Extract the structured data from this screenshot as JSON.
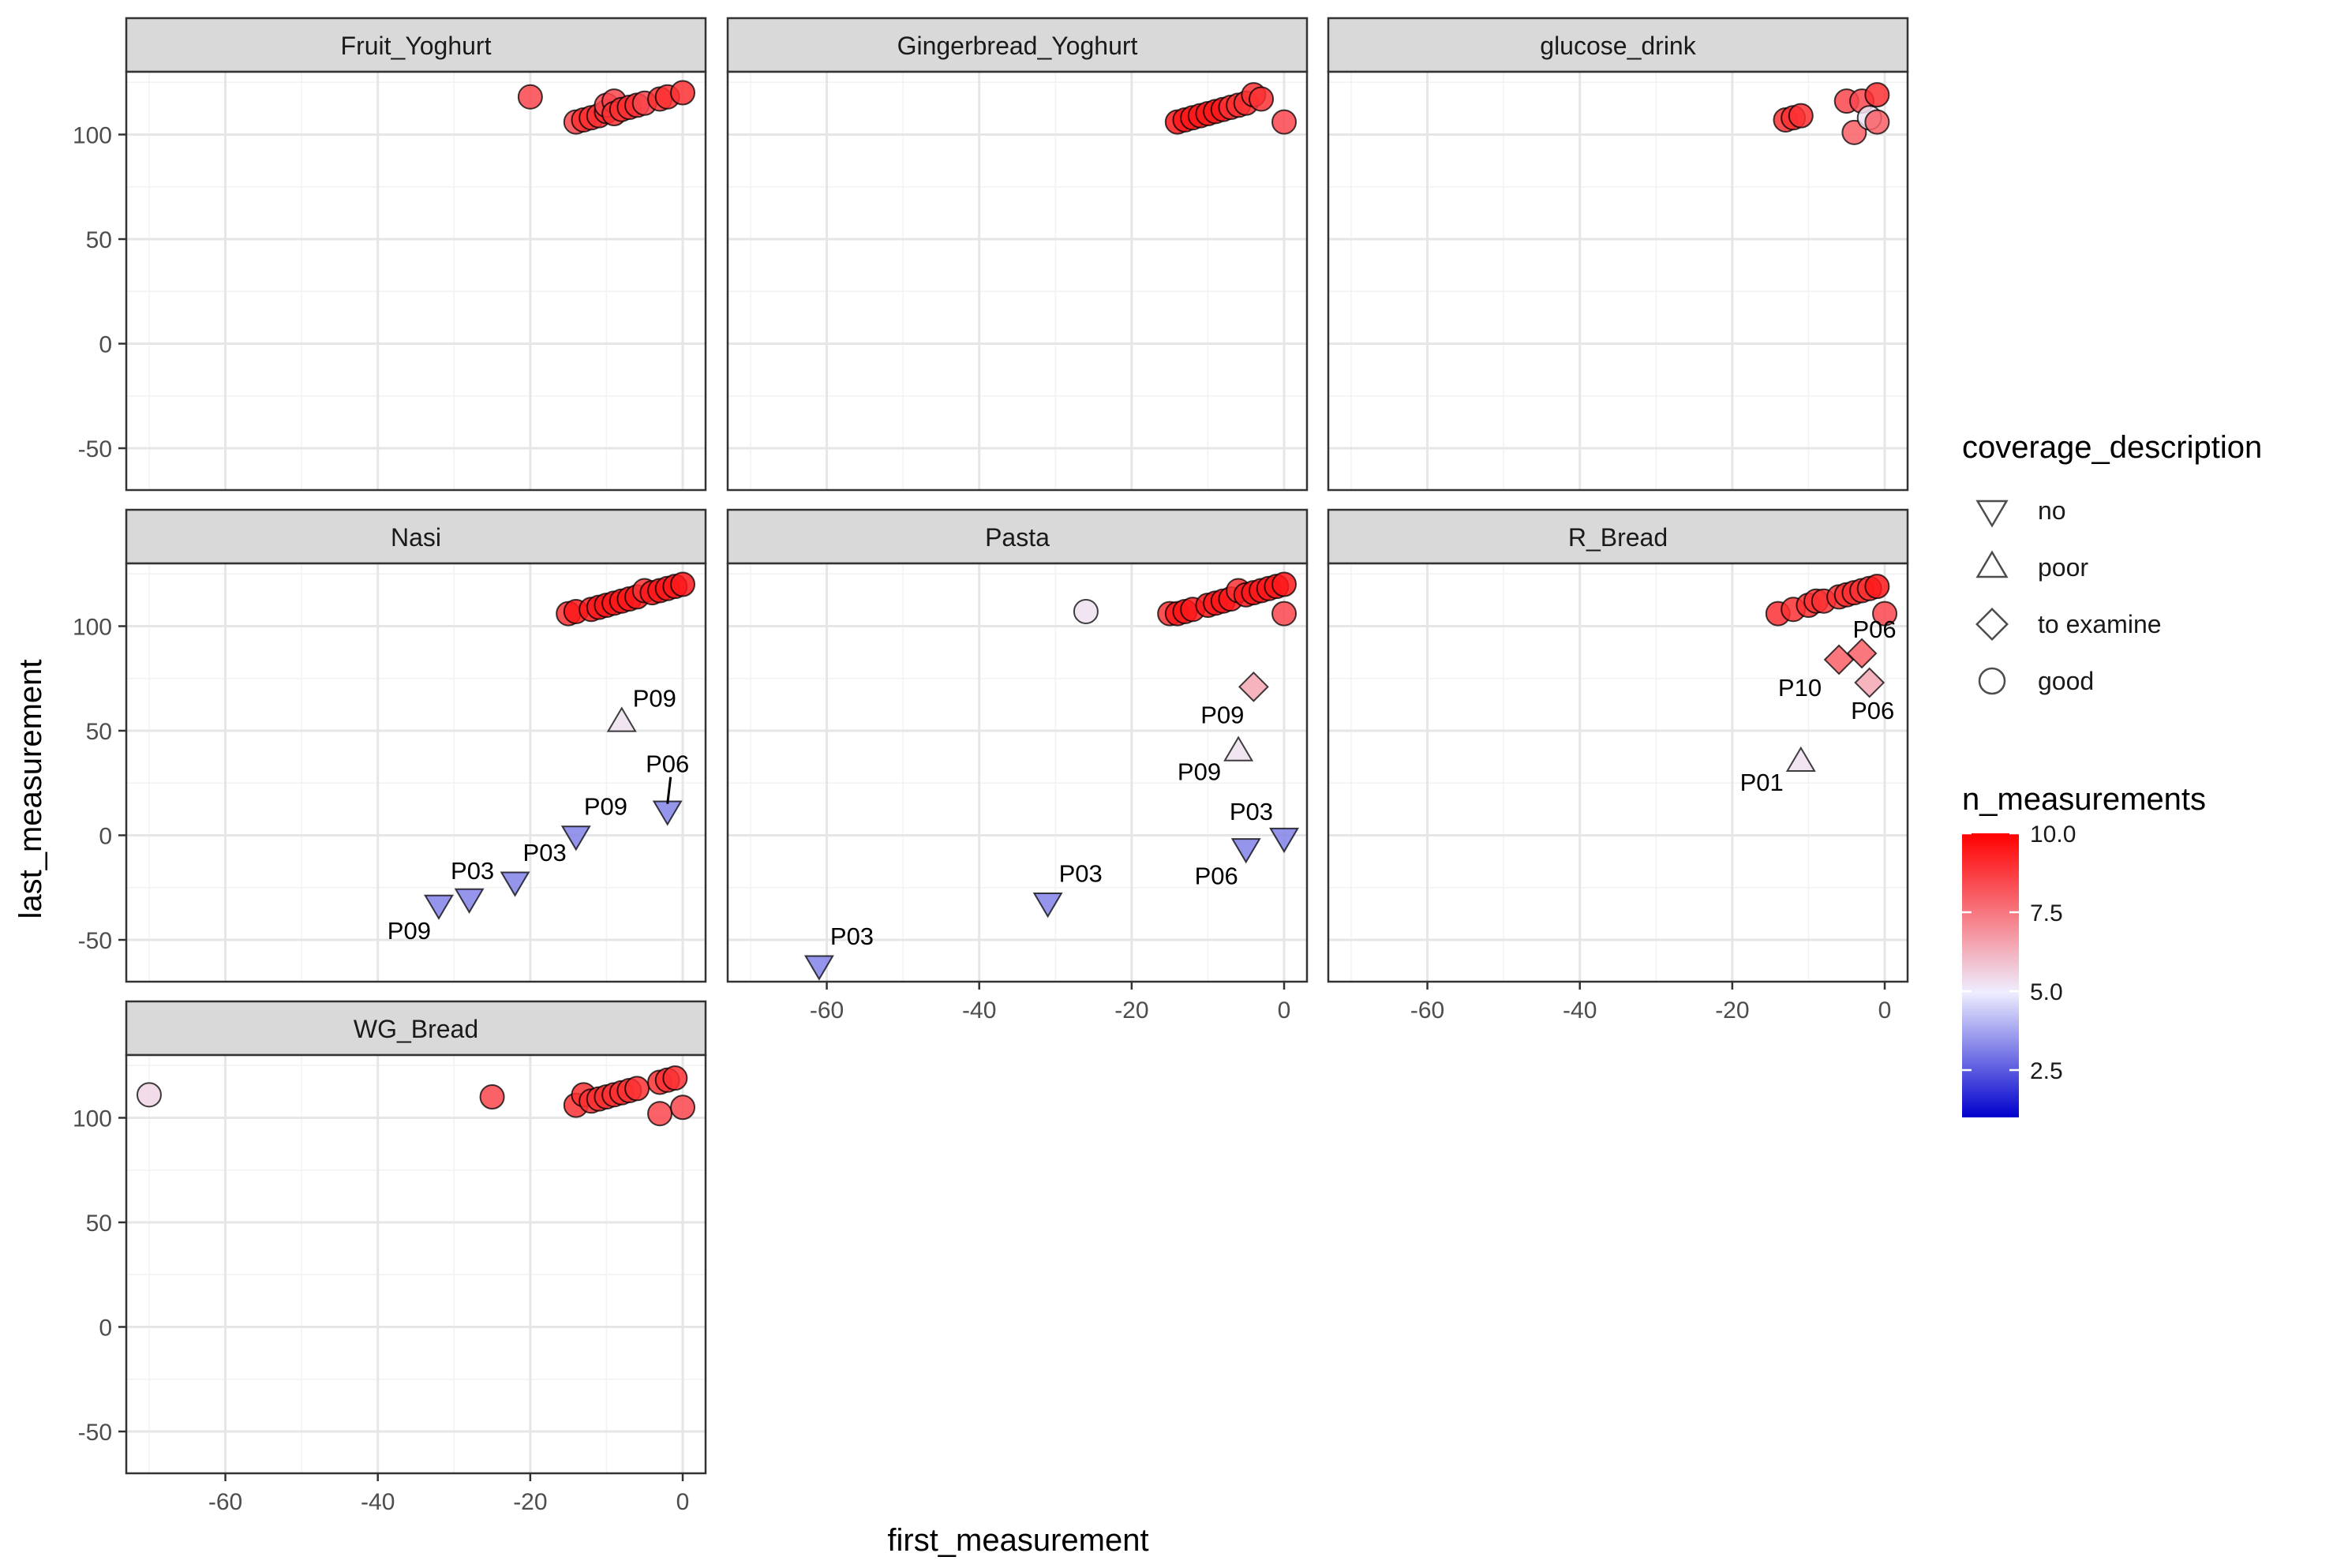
{
  "chart_data": {
    "type": "scatter",
    "xlabel": "first_measurement",
    "ylabel": "last_measurement",
    "xlim": [
      -73,
      3
    ],
    "ylim": [
      -70,
      130
    ],
    "x_ticks": [
      -60,
      -40,
      -20,
      0
    ],
    "y_ticks": [
      -50,
      0,
      50,
      100
    ],
    "grid": true,
    "facet_layout": "3 columns, fixed scales",
    "point_outline_color": "#000000",
    "label_color": "#000000",
    "legend_shape": {
      "title": "coverage_description",
      "entries": [
        {
          "label": "no",
          "shape": "triangle-down"
        },
        {
          "label": "poor",
          "shape": "triangle-up"
        },
        {
          "label": "to examine",
          "shape": "diamond"
        },
        {
          "label": "good",
          "shape": "circle"
        }
      ]
    },
    "legend_color": {
      "title": "n_measurements",
      "range": [
        1,
        10
      ],
      "ticks": [
        "10.0",
        "7.5",
        "5.0",
        "2.5"
      ],
      "tick_values": [
        10,
        7.5,
        5,
        2.5
      ],
      "colormap": [
        "#0000cd",
        "#eeeeff",
        "#ff0000"
      ],
      "midpoint": 5
    },
    "panels": [
      {
        "name": "Fruit_Yoghurt",
        "points": [
          {
            "x": -20,
            "y": 118,
            "coverage": "good",
            "n": 8.5
          },
          {
            "x": -14,
            "y": 106,
            "coverage": "good",
            "n": 8.5
          },
          {
            "x": -13,
            "y": 107,
            "coverage": "good",
            "n": 9
          },
          {
            "x": -12,
            "y": 108,
            "coverage": "good",
            "n": 9
          },
          {
            "x": -11,
            "y": 109,
            "coverage": "good",
            "n": 9
          },
          {
            "x": -10,
            "y": 111,
            "coverage": "good",
            "n": 9
          },
          {
            "x": -10,
            "y": 114,
            "coverage": "good",
            "n": 8.5
          },
          {
            "x": -9,
            "y": 116,
            "coverage": "good",
            "n": 8.5
          },
          {
            "x": -9,
            "y": 110,
            "coverage": "good",
            "n": 9
          },
          {
            "x": -8,
            "y": 112,
            "coverage": "good",
            "n": 9
          },
          {
            "x": -7,
            "y": 113,
            "coverage": "good",
            "n": 9
          },
          {
            "x": -6,
            "y": 114,
            "coverage": "good",
            "n": 9
          },
          {
            "x": -5,
            "y": 115,
            "coverage": "good",
            "n": 8.5
          },
          {
            "x": -3,
            "y": 117,
            "coverage": "good",
            "n": 9
          },
          {
            "x": -2,
            "y": 118,
            "coverage": "good",
            "n": 9
          },
          {
            "x": 0,
            "y": 120,
            "coverage": "good",
            "n": 9
          }
        ]
      },
      {
        "name": "Gingerbread_Yoghurt",
        "points": [
          {
            "x": -14,
            "y": 106,
            "coverage": "good",
            "n": 9.5
          },
          {
            "x": -13,
            "y": 107,
            "coverage": "good",
            "n": 9.5
          },
          {
            "x": -12,
            "y": 108,
            "coverage": "good",
            "n": 9.5
          },
          {
            "x": -11,
            "y": 109,
            "coverage": "good",
            "n": 9.5
          },
          {
            "x": -10,
            "y": 110,
            "coverage": "good",
            "n": 9.5
          },
          {
            "x": -9,
            "y": 111,
            "coverage": "good",
            "n": 9.5
          },
          {
            "x": -8,
            "y": 112,
            "coverage": "good",
            "n": 9.5
          },
          {
            "x": -7,
            "y": 113,
            "coverage": "good",
            "n": 9
          },
          {
            "x": -6,
            "y": 114,
            "coverage": "good",
            "n": 9
          },
          {
            "x": -5,
            "y": 115,
            "coverage": "good",
            "n": 9
          },
          {
            "x": -4,
            "y": 119,
            "coverage": "good",
            "n": 9
          },
          {
            "x": -3,
            "y": 117,
            "coverage": "good",
            "n": 9
          },
          {
            "x": 0,
            "y": 106,
            "coverage": "good",
            "n": 8.5
          }
        ]
      },
      {
        "name": "glucose_drink",
        "points": [
          {
            "x": -13,
            "y": 107,
            "coverage": "good",
            "n": 9
          },
          {
            "x": -12,
            "y": 108,
            "coverage": "good",
            "n": 9
          },
          {
            "x": -11,
            "y": 109,
            "coverage": "good",
            "n": 9
          },
          {
            "x": -5,
            "y": 116,
            "coverage": "good",
            "n": 8.5
          },
          {
            "x": -4,
            "y": 101,
            "coverage": "good",
            "n": 8
          },
          {
            "x": -3,
            "y": 116,
            "coverage": "good",
            "n": 8.5
          },
          {
            "x": -2,
            "y": 108,
            "coverage": "good",
            "n": 5.2
          },
          {
            "x": -1,
            "y": 119,
            "coverage": "good",
            "n": 9
          },
          {
            "x": -1,
            "y": 106,
            "coverage": "good",
            "n": 8
          }
        ]
      },
      {
        "name": "Nasi",
        "points": [
          {
            "x": -15,
            "y": 106,
            "coverage": "good",
            "n": 9
          },
          {
            "x": -14,
            "y": 107,
            "coverage": "good",
            "n": 9.5
          },
          {
            "x": -12,
            "y": 108,
            "coverage": "good",
            "n": 9.5
          },
          {
            "x": -11,
            "y": 109,
            "coverage": "good",
            "n": 9.5
          },
          {
            "x": -10,
            "y": 110,
            "coverage": "good",
            "n": 9.5
          },
          {
            "x": -9,
            "y": 111,
            "coverage": "good",
            "n": 9.5
          },
          {
            "x": -8,
            "y": 112,
            "coverage": "good",
            "n": 9.5
          },
          {
            "x": -7,
            "y": 113,
            "coverage": "good",
            "n": 9.5
          },
          {
            "x": -6,
            "y": 114,
            "coverage": "good",
            "n": 9.5
          },
          {
            "x": -5,
            "y": 117,
            "coverage": "good",
            "n": 9
          },
          {
            "x": -4,
            "y": 116,
            "coverage": "good",
            "n": 9.5
          },
          {
            "x": -3,
            "y": 117,
            "coverage": "good",
            "n": 9.5
          },
          {
            "x": -2,
            "y": 118,
            "coverage": "good",
            "n": 9.5
          },
          {
            "x": -1,
            "y": 119,
            "coverage": "good",
            "n": 9.5
          },
          {
            "x": 0,
            "y": 120,
            "coverage": "good",
            "n": 9.5
          },
          {
            "x": -8,
            "y": 54,
            "coverage": "poor",
            "n": 5.3,
            "label": "P09"
          },
          {
            "x": -2,
            "y": 12,
            "coverage": "no",
            "n": 3.2,
            "label": "P06"
          },
          {
            "x": -14,
            "y": 0,
            "coverage": "no",
            "n": 3.2,
            "label": "P09"
          },
          {
            "x": -22,
            "y": -22,
            "coverage": "no",
            "n": 3.2,
            "label": "P03"
          },
          {
            "x": -28,
            "y": -30,
            "coverage": "no",
            "n": 3.2,
            "label": "P03"
          },
          {
            "x": -32,
            "y": -33,
            "coverage": "no",
            "n": 3.2,
            "label": "P09"
          }
        ]
      },
      {
        "name": "Pasta",
        "points": [
          {
            "x": -15,
            "y": 106,
            "coverage": "good",
            "n": 9
          },
          {
            "x": -14,
            "y": 106,
            "coverage": "good",
            "n": 9.5
          },
          {
            "x": -13,
            "y": 107,
            "coverage": "good",
            "n": 9.5
          },
          {
            "x": -12,
            "y": 108,
            "coverage": "good",
            "n": 9.5
          },
          {
            "x": -10,
            "y": 110,
            "coverage": "good",
            "n": 9.5
          },
          {
            "x": -9,
            "y": 111,
            "coverage": "good",
            "n": 9.5
          },
          {
            "x": -8,
            "y": 112,
            "coverage": "good",
            "n": 9.5
          },
          {
            "x": -7,
            "y": 113,
            "coverage": "good",
            "n": 9.5
          },
          {
            "x": -6,
            "y": 117,
            "coverage": "good",
            "n": 9
          },
          {
            "x": -5,
            "y": 115,
            "coverage": "good",
            "n": 9.5
          },
          {
            "x": -4,
            "y": 116,
            "coverage": "good",
            "n": 9.5
          },
          {
            "x": -3,
            "y": 117,
            "coverage": "good",
            "n": 9.5
          },
          {
            "x": -2,
            "y": 118,
            "coverage": "good",
            "n": 9.5
          },
          {
            "x": -1,
            "y": 119,
            "coverage": "good",
            "n": 9.5
          },
          {
            "x": 0,
            "y": 120,
            "coverage": "good",
            "n": 9.5
          },
          {
            "x": 0,
            "y": 106,
            "coverage": "good",
            "n": 8.5
          },
          {
            "x": -26,
            "y": 107,
            "coverage": "good",
            "n": 5.3
          },
          {
            "x": -4,
            "y": 71,
            "coverage": "to examine",
            "n": 6.5,
            "label": "P09"
          },
          {
            "x": -6,
            "y": 40,
            "coverage": "poor",
            "n": 5.3,
            "label": "P09"
          },
          {
            "x": 0,
            "y": -1,
            "coverage": "no",
            "n": 3.2,
            "label": "P03"
          },
          {
            "x": -5,
            "y": -6,
            "coverage": "no",
            "n": 3.2,
            "label": "P06"
          },
          {
            "x": -31,
            "y": -32,
            "coverage": "no",
            "n": 3.2,
            "label": "P03"
          },
          {
            "x": -61,
            "y": -62,
            "coverage": "no",
            "n": 3.2,
            "label": "P03"
          }
        ]
      },
      {
        "name": "R_Bread",
        "points": [
          {
            "x": -14,
            "y": 106,
            "coverage": "good",
            "n": 9
          },
          {
            "x": -12,
            "y": 108,
            "coverage": "good",
            "n": 9
          },
          {
            "x": -10,
            "y": 110,
            "coverage": "good",
            "n": 9
          },
          {
            "x": -9,
            "y": 112,
            "coverage": "good",
            "n": 9
          },
          {
            "x": -8,
            "y": 112,
            "coverage": "good",
            "n": 9
          },
          {
            "x": -6,
            "y": 114,
            "coverage": "good",
            "n": 9
          },
          {
            "x": -5,
            "y": 115,
            "coverage": "good",
            "n": 9
          },
          {
            "x": -4,
            "y": 116,
            "coverage": "good",
            "n": 9
          },
          {
            "x": -3,
            "y": 117,
            "coverage": "good",
            "n": 9
          },
          {
            "x": -2,
            "y": 118,
            "coverage": "good",
            "n": 9
          },
          {
            "x": -1,
            "y": 119,
            "coverage": "good",
            "n": 9.5
          },
          {
            "x": 0,
            "y": 106,
            "coverage": "good",
            "n": 8.5
          },
          {
            "x": -3,
            "y": 87,
            "coverage": "to examine",
            "n": 8,
            "label": "P06"
          },
          {
            "x": -6,
            "y": 84,
            "coverage": "to examine",
            "n": 8,
            "label": "P10"
          },
          {
            "x": -2,
            "y": 73,
            "coverage": "to examine",
            "n": 6.5,
            "label": "P06"
          },
          {
            "x": -11,
            "y": 35,
            "coverage": "poor",
            "n": 5.3,
            "label": "P01"
          }
        ]
      },
      {
        "name": "WG_Bread",
        "points": [
          {
            "x": -70,
            "y": 111,
            "coverage": "good",
            "n": 5.5
          },
          {
            "x": -25,
            "y": 110,
            "coverage": "good",
            "n": 8.5
          },
          {
            "x": -14,
            "y": 106,
            "coverage": "good",
            "n": 9
          },
          {
            "x": -13,
            "y": 111,
            "coverage": "good",
            "n": 9
          },
          {
            "x": -12,
            "y": 108,
            "coverage": "good",
            "n": 9
          },
          {
            "x": -11,
            "y": 109,
            "coverage": "good",
            "n": 9
          },
          {
            "x": -10,
            "y": 110,
            "coverage": "good",
            "n": 9
          },
          {
            "x": -9,
            "y": 111,
            "coverage": "good",
            "n": 9
          },
          {
            "x": -8,
            "y": 112,
            "coverage": "good",
            "n": 9
          },
          {
            "x": -7,
            "y": 113,
            "coverage": "good",
            "n": 9
          },
          {
            "x": -6,
            "y": 114,
            "coverage": "good",
            "n": 9
          },
          {
            "x": -3,
            "y": 117,
            "coverage": "good",
            "n": 9
          },
          {
            "x": -3,
            "y": 102,
            "coverage": "good",
            "n": 8.5
          },
          {
            "x": -2,
            "y": 118,
            "coverage": "good",
            "n": 9
          },
          {
            "x": -1,
            "y": 119,
            "coverage": "good",
            "n": 9
          },
          {
            "x": 0,
            "y": 105,
            "coverage": "good",
            "n": 8.5
          }
        ]
      }
    ]
  }
}
